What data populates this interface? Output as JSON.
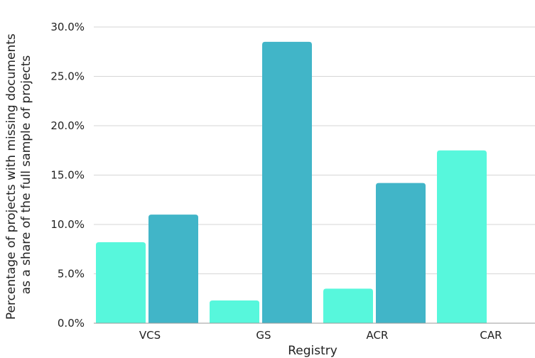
{
  "chart_data": {
    "type": "bar",
    "title": "",
    "xlabel": "Registry",
    "ylabel": [
      "Percentage of projects with missing documents",
      "as a share of the full sample of projects"
    ],
    "categories": [
      "VCS",
      "GS",
      "ACR",
      "CAR"
    ],
    "series": [
      {
        "color": "#57f7dc",
        "values": [
          8.2,
          2.3,
          3.5,
          17.5
        ]
      },
      {
        "color": "#41b5c8",
        "values": [
          11.0,
          28.5,
          14.2,
          0
        ]
      }
    ],
    "ylim": [
      0,
      30
    ],
    "yticks": [
      0,
      5,
      10,
      15,
      20,
      25,
      30
    ],
    "ytick_labels": [
      "0.0%",
      "5.0%",
      "10.0%",
      "15.0%",
      "20.0%",
      "25.0%",
      "30.0%"
    ],
    "grid": true,
    "legend": "none",
    "grid_color": "#d6d6d6",
    "axis_color": "#999999"
  }
}
